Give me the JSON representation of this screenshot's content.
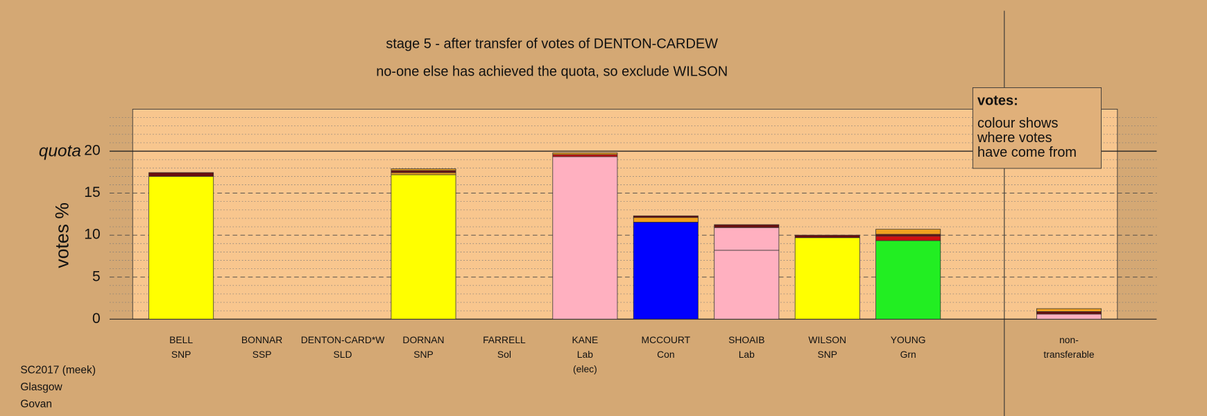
{
  "chart_data": {
    "type": "stacked_bar",
    "title": "stage 5 - after transfer of votes of DENTON-CARDEW",
    "subtitle": "no-one else has achieved the quota, so exclude WILSON",
    "ylabel": "votes %",
    "quota_label": "quota",
    "quota": 20,
    "ylim": [
      0,
      25
    ],
    "yticks": [
      0,
      5,
      10,
      15,
      20
    ],
    "minor_gridlines": [
      1,
      2,
      3,
      4,
      6,
      7,
      8,
      9,
      11,
      12,
      13,
      14,
      16,
      17,
      18,
      19,
      21,
      22,
      23,
      24
    ],
    "legend": {
      "title": "votes:",
      "lines": [
        "colour shows",
        "where votes",
        "have come from"
      ]
    },
    "footer": [
      "SC2017 (meek)",
      "Glasgow",
      "Govan"
    ],
    "bars": [
      {
        "lines": [
          "BELL",
          "SNP"
        ],
        "segments": [
          {
            "color": "#ffff00",
            "value": 17.0
          },
          {
            "color": "#6b1010",
            "value": 0.45
          }
        ]
      },
      {
        "lines": [
          "BONNAR",
          "SSP"
        ],
        "segments": []
      },
      {
        "lines": [
          "DENTON-CARD*W",
          "SLD"
        ],
        "segments": []
      },
      {
        "lines": [
          "DORNAN",
          "SNP"
        ],
        "segments": [
          {
            "color": "#ffff00",
            "value": 17.2
          },
          {
            "color": "#f0a020",
            "value": 0.25
          },
          {
            "color": "#6b1010",
            "value": 0.25
          },
          {
            "color": "#f0a020",
            "value": 0.2
          }
        ]
      },
      {
        "lines": [
          "FARRELL",
          "Sol"
        ],
        "segments": []
      },
      {
        "lines": [
          "KANE",
          "Lab",
          "(elec)"
        ],
        "segments": [
          {
            "color": "#ffb0c0",
            "value": 19.35
          },
          {
            "color": "#cc1010",
            "value": 0.25
          },
          {
            "color": "#f0a020",
            "value": 0.2
          }
        ]
      },
      {
        "lines": [
          "MCCOURT",
          "Con"
        ],
        "segments": [
          {
            "color": "#0000ff",
            "value": 11.55
          },
          {
            "color": "#f0a020",
            "value": 0.55
          },
          {
            "color": "#6b1010",
            "value": 0.2
          }
        ]
      },
      {
        "lines": [
          "SHOAIB",
          "Lab"
        ],
        "segments": [
          {
            "color": "#ffb0c0",
            "value": 8.2
          },
          {
            "color": "#ffb0c0",
            "value": 2.7
          },
          {
            "color": "#6b1010",
            "value": 0.35
          }
        ]
      },
      {
        "lines": [
          "WILSON",
          "SNP"
        ],
        "segments": [
          {
            "color": "#ffff00",
            "value": 9.7
          },
          {
            "color": "#6b1010",
            "value": 0.3
          }
        ]
      },
      {
        "lines": [
          "YOUNG",
          "Grn"
        ],
        "segments": [
          {
            "color": "#22ee22",
            "value": 9.35
          },
          {
            "color": "#cc1010",
            "value": 0.55
          },
          {
            "color": "#6b1010",
            "value": 0.2
          },
          {
            "color": "#f0a020",
            "value": 0.6
          }
        ]
      },
      {
        "lines": [
          "non-",
          "transferable"
        ],
        "segments": [
          {
            "color": "#ffb0c0",
            "value": 0.6
          },
          {
            "color": "#6b1010",
            "value": 0.3
          },
          {
            "color": "#f0a020",
            "value": 0.35
          }
        ]
      }
    ]
  }
}
